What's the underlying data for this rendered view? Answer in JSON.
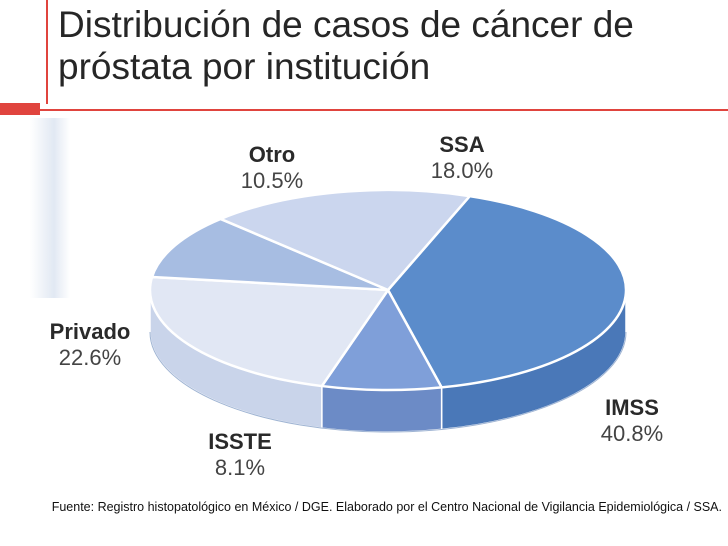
{
  "title": {
    "line1": "Distribución de casos de cáncer de",
    "line2": "próstata por institución"
  },
  "chart_data": {
    "type": "pie",
    "style": "3d",
    "slices": [
      {
        "label": "IMSS",
        "value": 40.8,
        "value_label": "40.8%",
        "color": "#5b8ccb",
        "side_color": "#4a78b8"
      },
      {
        "label": "ISSTE",
        "value": 8.1,
        "value_label": "8.1%",
        "color": "#7f9fd9",
        "side_color": "#6c8bc6"
      },
      {
        "label": "Privado",
        "value": 22.6,
        "value_label": "22.6%",
        "color": "#e1e7f4",
        "side_color": "#c9d4ea"
      },
      {
        "label": "Otro",
        "value": 10.5,
        "value_label": "10.5%",
        "color": "#a7bde2",
        "side_color": "#8aa4d2"
      },
      {
        "label": "SSA",
        "value": 18.0,
        "value_label": "18.0%",
        "color": "#cbd6ee",
        "side_color": "#aebfe2"
      }
    ]
  },
  "source": "Fuente: Registro histopatológico en México / DGE. Elaborado por el Centro Nacional de Vigilancia Epidemiológica / SSA."
}
